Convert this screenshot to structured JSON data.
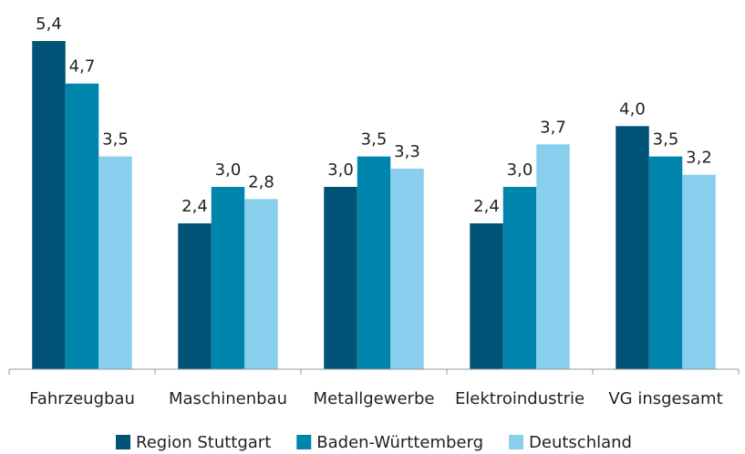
{
  "chart_data": {
    "type": "bar",
    "categories": [
      "Fahrzeugbau",
      "Maschinenbau",
      "Metallgewerbe",
      "Elektroindustrie",
      "VG insgesamt"
    ],
    "series": [
      {
        "name": "Region Stuttgart",
        "color": "#005276",
        "values": [
          5.4,
          2.4,
          3.0,
          2.4,
          4.0
        ],
        "value_labels": [
          "5,4",
          "2,4",
          "3,0",
          "2,4",
          "4,0"
        ]
      },
      {
        "name": "Baden-Württemberg",
        "color": "#0085ad",
        "values": [
          4.7,
          3.0,
          3.5,
          3.0,
          3.5
        ],
        "value_labels": [
          "4,7",
          "3,0",
          "3,5",
          "3,0",
          "3,5"
        ]
      },
      {
        "name": "Deutschland",
        "color": "#87cfed",
        "values": [
          3.5,
          2.8,
          3.3,
          3.7,
          3.2
        ],
        "value_labels": [
          "3,5",
          "2,8",
          "3,3",
          "3,7",
          "3,2"
        ]
      }
    ],
    "ylim": [
      0,
      6
    ],
    "legend": "bottom"
  }
}
